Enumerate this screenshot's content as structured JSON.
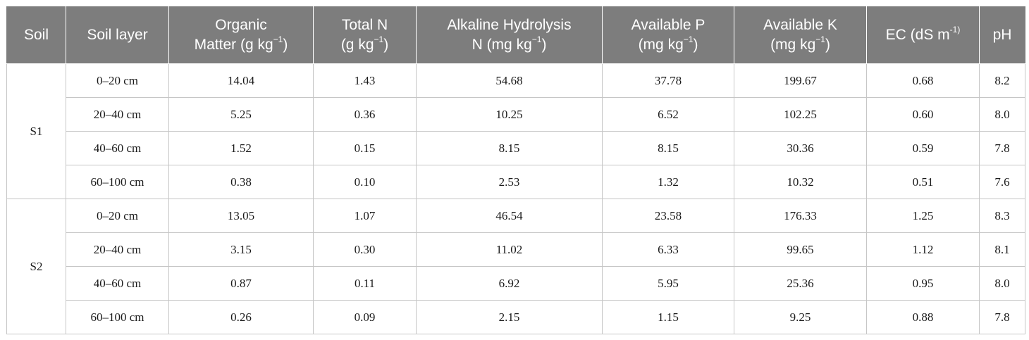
{
  "headers": {
    "soil": "Soil",
    "soil_layer": "Soil layer",
    "om_l1": "Organic",
    "om_l2": "Matter (g kg",
    "tn_l1": "Total N",
    "tn_l2": "(g kg",
    "ahn_l1": "Alkaline Hydrolysis",
    "ahn_l2": "N (mg kg",
    "ap_l1": "Available P",
    "ap_l2": "(mg kg",
    "ak_l1": "Available K",
    "ak_l2": "(mg kg",
    "ec_l1": "EC (dS m",
    "ec_sup": "-1)",
    "ph": "pH",
    "unit_sup": "−1",
    "close_paren": ")"
  },
  "groups": [
    {
      "soil": "S1",
      "rows": [
        [
          "0–20 cm",
          "14.04",
          "1.43",
          "54.68",
          "37.78",
          "199.67",
          "0.68",
          "8.2"
        ],
        [
          "20–40 cm",
          "5.25",
          "0.36",
          "10.25",
          "6.52",
          "102.25",
          "0.60",
          "8.0"
        ],
        [
          "40–60 cm",
          "1.52",
          "0.15",
          "8.15",
          "8.15",
          "30.36",
          "0.59",
          "7.8"
        ],
        [
          "60–100 cm",
          "0.38",
          "0.10",
          "2.53",
          "1.32",
          "10.32",
          "0.51",
          "7.6"
        ]
      ]
    },
    {
      "soil": "S2",
      "rows": [
        [
          "0–20 cm",
          "13.05",
          "1.07",
          "46.54",
          "23.58",
          "176.33",
          "1.25",
          "8.3"
        ],
        [
          "20–40 cm",
          "3.15",
          "0.30",
          "11.02",
          "6.33",
          "99.65",
          "1.12",
          "8.1"
        ],
        [
          "40–60 cm",
          "0.87",
          "0.11",
          "6.92",
          "5.95",
          "25.36",
          "0.95",
          "8.0"
        ],
        [
          "60–100 cm",
          "0.26",
          "0.09",
          "2.15",
          "1.15",
          "9.25",
          "0.88",
          "7.8"
        ]
      ]
    }
  ]
}
